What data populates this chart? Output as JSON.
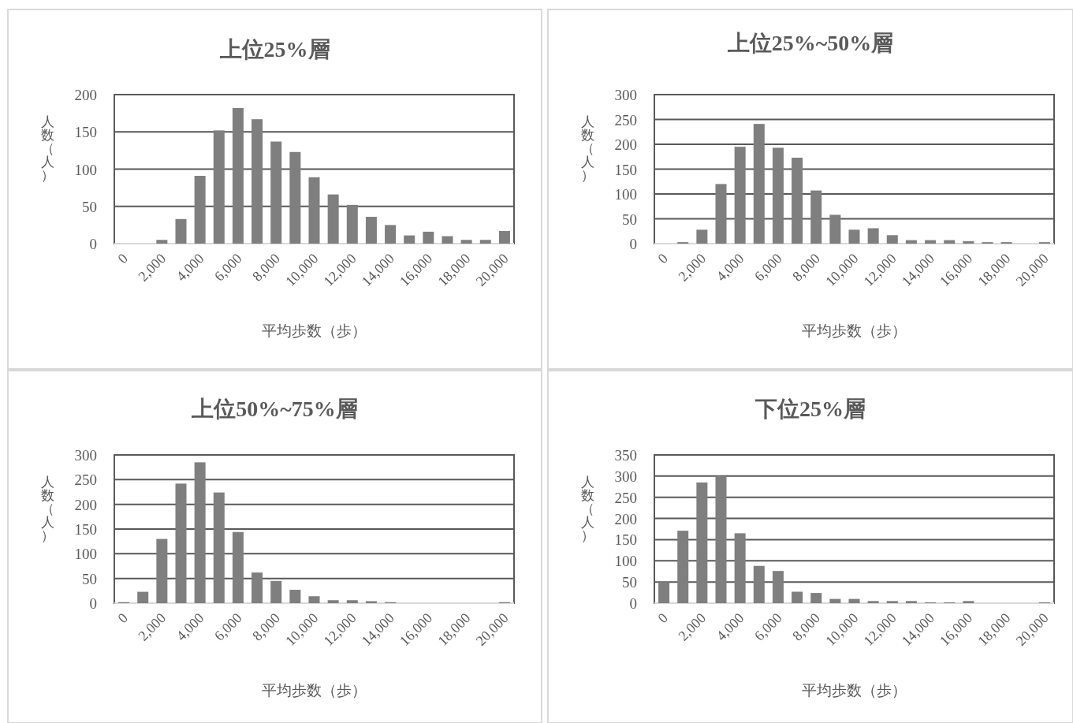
{
  "chart_data": [
    {
      "type": "bar",
      "title": "上位25%層",
      "xlabel": "平均歩数（歩）",
      "ylabel": "人数（人）",
      "categories": [
        "0",
        null,
        "2,000",
        null,
        "4,000",
        null,
        "6,000",
        null,
        "8,000",
        null,
        "10,000",
        null,
        "12,000",
        null,
        "14,000",
        null,
        "16,000",
        null,
        "18,000",
        null,
        "20,000"
      ],
      "color": "#7f7f7f",
      "values": [
        0,
        0,
        5,
        33,
        91,
        152,
        182,
        167,
        137,
        123,
        89,
        66,
        52,
        36,
        25,
        11,
        16,
        10,
        5,
        5,
        17
      ],
      "ylim": [
        0,
        200
      ],
      "yticks": [
        0,
        50,
        100,
        150,
        200
      ],
      "grid": "y"
    },
    {
      "type": "bar",
      "title": "上位25%~50%層",
      "xlabel": "平均歩数（歩）",
      "ylabel": "人数（人）",
      "categories": [
        "0",
        null,
        "2,000",
        null,
        "4,000",
        null,
        "6,000",
        null,
        "8,000",
        null,
        "10,000",
        null,
        "12,000",
        null,
        "14,000",
        null,
        "16,000",
        null,
        "18,000",
        null,
        "20,000"
      ],
      "color": "#7f7f7f",
      "values": [
        0,
        3,
        28,
        120,
        195,
        241,
        193,
        173,
        107,
        58,
        28,
        31,
        17,
        7,
        7,
        7,
        5,
        3,
        3,
        0,
        3
      ],
      "ylim": [
        0,
        300
      ],
      "yticks": [
        0,
        50,
        100,
        150,
        200,
        250,
        300
      ],
      "grid": "y"
    },
    {
      "type": "bar",
      "title": "上位50%~75%層",
      "xlabel": "平均歩数（歩）",
      "ylabel": "人数（人）",
      "categories": [
        "0",
        null,
        "2,000",
        null,
        "4,000",
        null,
        "6,000",
        null,
        "8,000",
        null,
        "10,000",
        null,
        "12,000",
        null,
        "14,000",
        null,
        "16,000",
        null,
        "18,000",
        null,
        "20,000"
      ],
      "color": "#7f7f7f",
      "values": [
        2,
        23,
        130,
        242,
        285,
        224,
        144,
        62,
        45,
        27,
        14,
        6,
        6,
        4,
        2,
        0,
        0,
        0,
        0,
        0,
        2
      ],
      "ylim": [
        0,
        300
      ],
      "yticks": [
        0,
        50,
        100,
        150,
        200,
        250,
        300
      ],
      "grid": "y"
    },
    {
      "type": "bar",
      "title": "下位25%層",
      "xlabel": "平均歩数（歩）",
      "ylabel": "人数（人）",
      "categories": [
        "0",
        null,
        "2,000",
        null,
        "4,000",
        null,
        "6,000",
        null,
        "8,000",
        null,
        "10,000",
        null,
        "12,000",
        null,
        "14,000",
        null,
        "16,000",
        null,
        "18,000",
        null,
        "20,000"
      ],
      "color": "#7f7f7f",
      "values": [
        50,
        171,
        285,
        300,
        165,
        88,
        76,
        27,
        24,
        10,
        10,
        5,
        5,
        5,
        2,
        2,
        5,
        0,
        0,
        0,
        2
      ],
      "ylim": [
        0,
        350
      ],
      "yticks": [
        0,
        50,
        100,
        150,
        200,
        250,
        300,
        350
      ],
      "grid": "y"
    }
  ]
}
